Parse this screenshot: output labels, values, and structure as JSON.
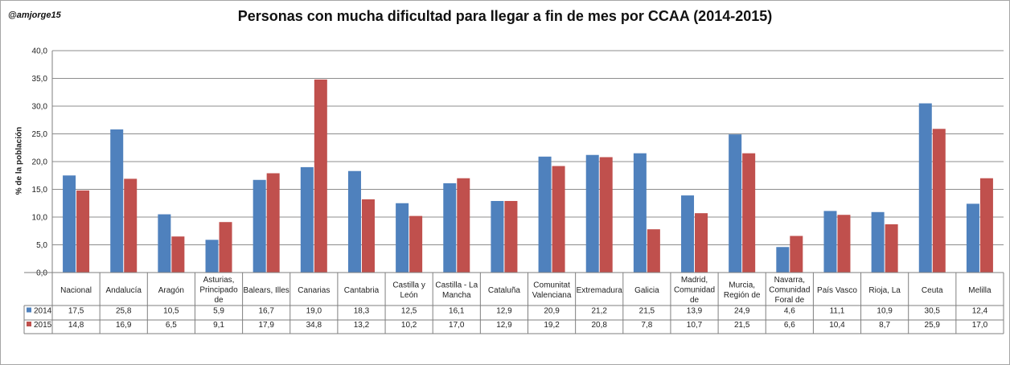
{
  "author": "@amjorge15",
  "chart_data": {
    "type": "bar",
    "title": "Personas con mucha dificultad para llegar a fin de mes por CCAA (2014-2015)",
    "xlabel": "",
    "ylabel": "% de la población",
    "ylim": [
      0,
      40
    ],
    "yticks": [
      "0,0",
      "5,0",
      "10,0",
      "15,0",
      "20,0",
      "25,0",
      "30,0",
      "35,0",
      "40,0"
    ],
    "grid": true,
    "legend": "data-table",
    "categories": [
      [
        "Nacional"
      ],
      [
        "Andalucía"
      ],
      [
        "Aragón"
      ],
      [
        "Asturias,",
        "Principado",
        "de"
      ],
      [
        "Balears, Illes"
      ],
      [
        "Canarias"
      ],
      [
        "Cantabria"
      ],
      [
        "Castilla y",
        "León"
      ],
      [
        "Castilla - La",
        "Mancha"
      ],
      [
        "Cataluña"
      ],
      [
        "Comunitat",
        "Valenciana"
      ],
      [
        "Extremadura"
      ],
      [
        "Galicia"
      ],
      [
        "Madrid,",
        "Comunidad",
        "de"
      ],
      [
        "Murcia,",
        "Región de"
      ],
      [
        "Navarra,",
        "Comunidad",
        "Foral de"
      ],
      [
        "País Vasco"
      ],
      [
        "Rioja, La"
      ],
      [
        "Ceuta"
      ],
      [
        "Melilla"
      ]
    ],
    "series": [
      {
        "name": "2014",
        "color": "#4f81bd",
        "values": [
          17.5,
          25.8,
          10.5,
          5.9,
          16.7,
          19.0,
          18.3,
          12.5,
          16.1,
          12.9,
          20.9,
          21.2,
          21.5,
          13.9,
          24.9,
          4.6,
          11.1,
          10.9,
          30.5,
          12.4
        ],
        "labels": [
          "17,5",
          "25,8",
          "10,5",
          "5,9",
          "16,7",
          "19,0",
          "18,3",
          "12,5",
          "16,1",
          "12,9",
          "20,9",
          "21,2",
          "21,5",
          "13,9",
          "24,9",
          "4,6",
          "11,1",
          "10,9",
          "30,5",
          "12,4"
        ]
      },
      {
        "name": "2015",
        "color": "#c0504d",
        "values": [
          14.8,
          16.9,
          6.5,
          9.1,
          17.9,
          34.8,
          13.2,
          10.2,
          17.0,
          12.9,
          19.2,
          20.8,
          7.8,
          10.7,
          21.5,
          6.6,
          10.4,
          8.7,
          25.9,
          17.0
        ],
        "labels": [
          "14,8",
          "16,9",
          "6,5",
          "9,1",
          "17,9",
          "34,8",
          "13,2",
          "10,2",
          "17,0",
          "12,9",
          "19,2",
          "20,8",
          "7,8",
          "10,7",
          "21,5",
          "6,6",
          "10,4",
          "8,7",
          "25,9",
          "17,0"
        ]
      }
    ]
  }
}
